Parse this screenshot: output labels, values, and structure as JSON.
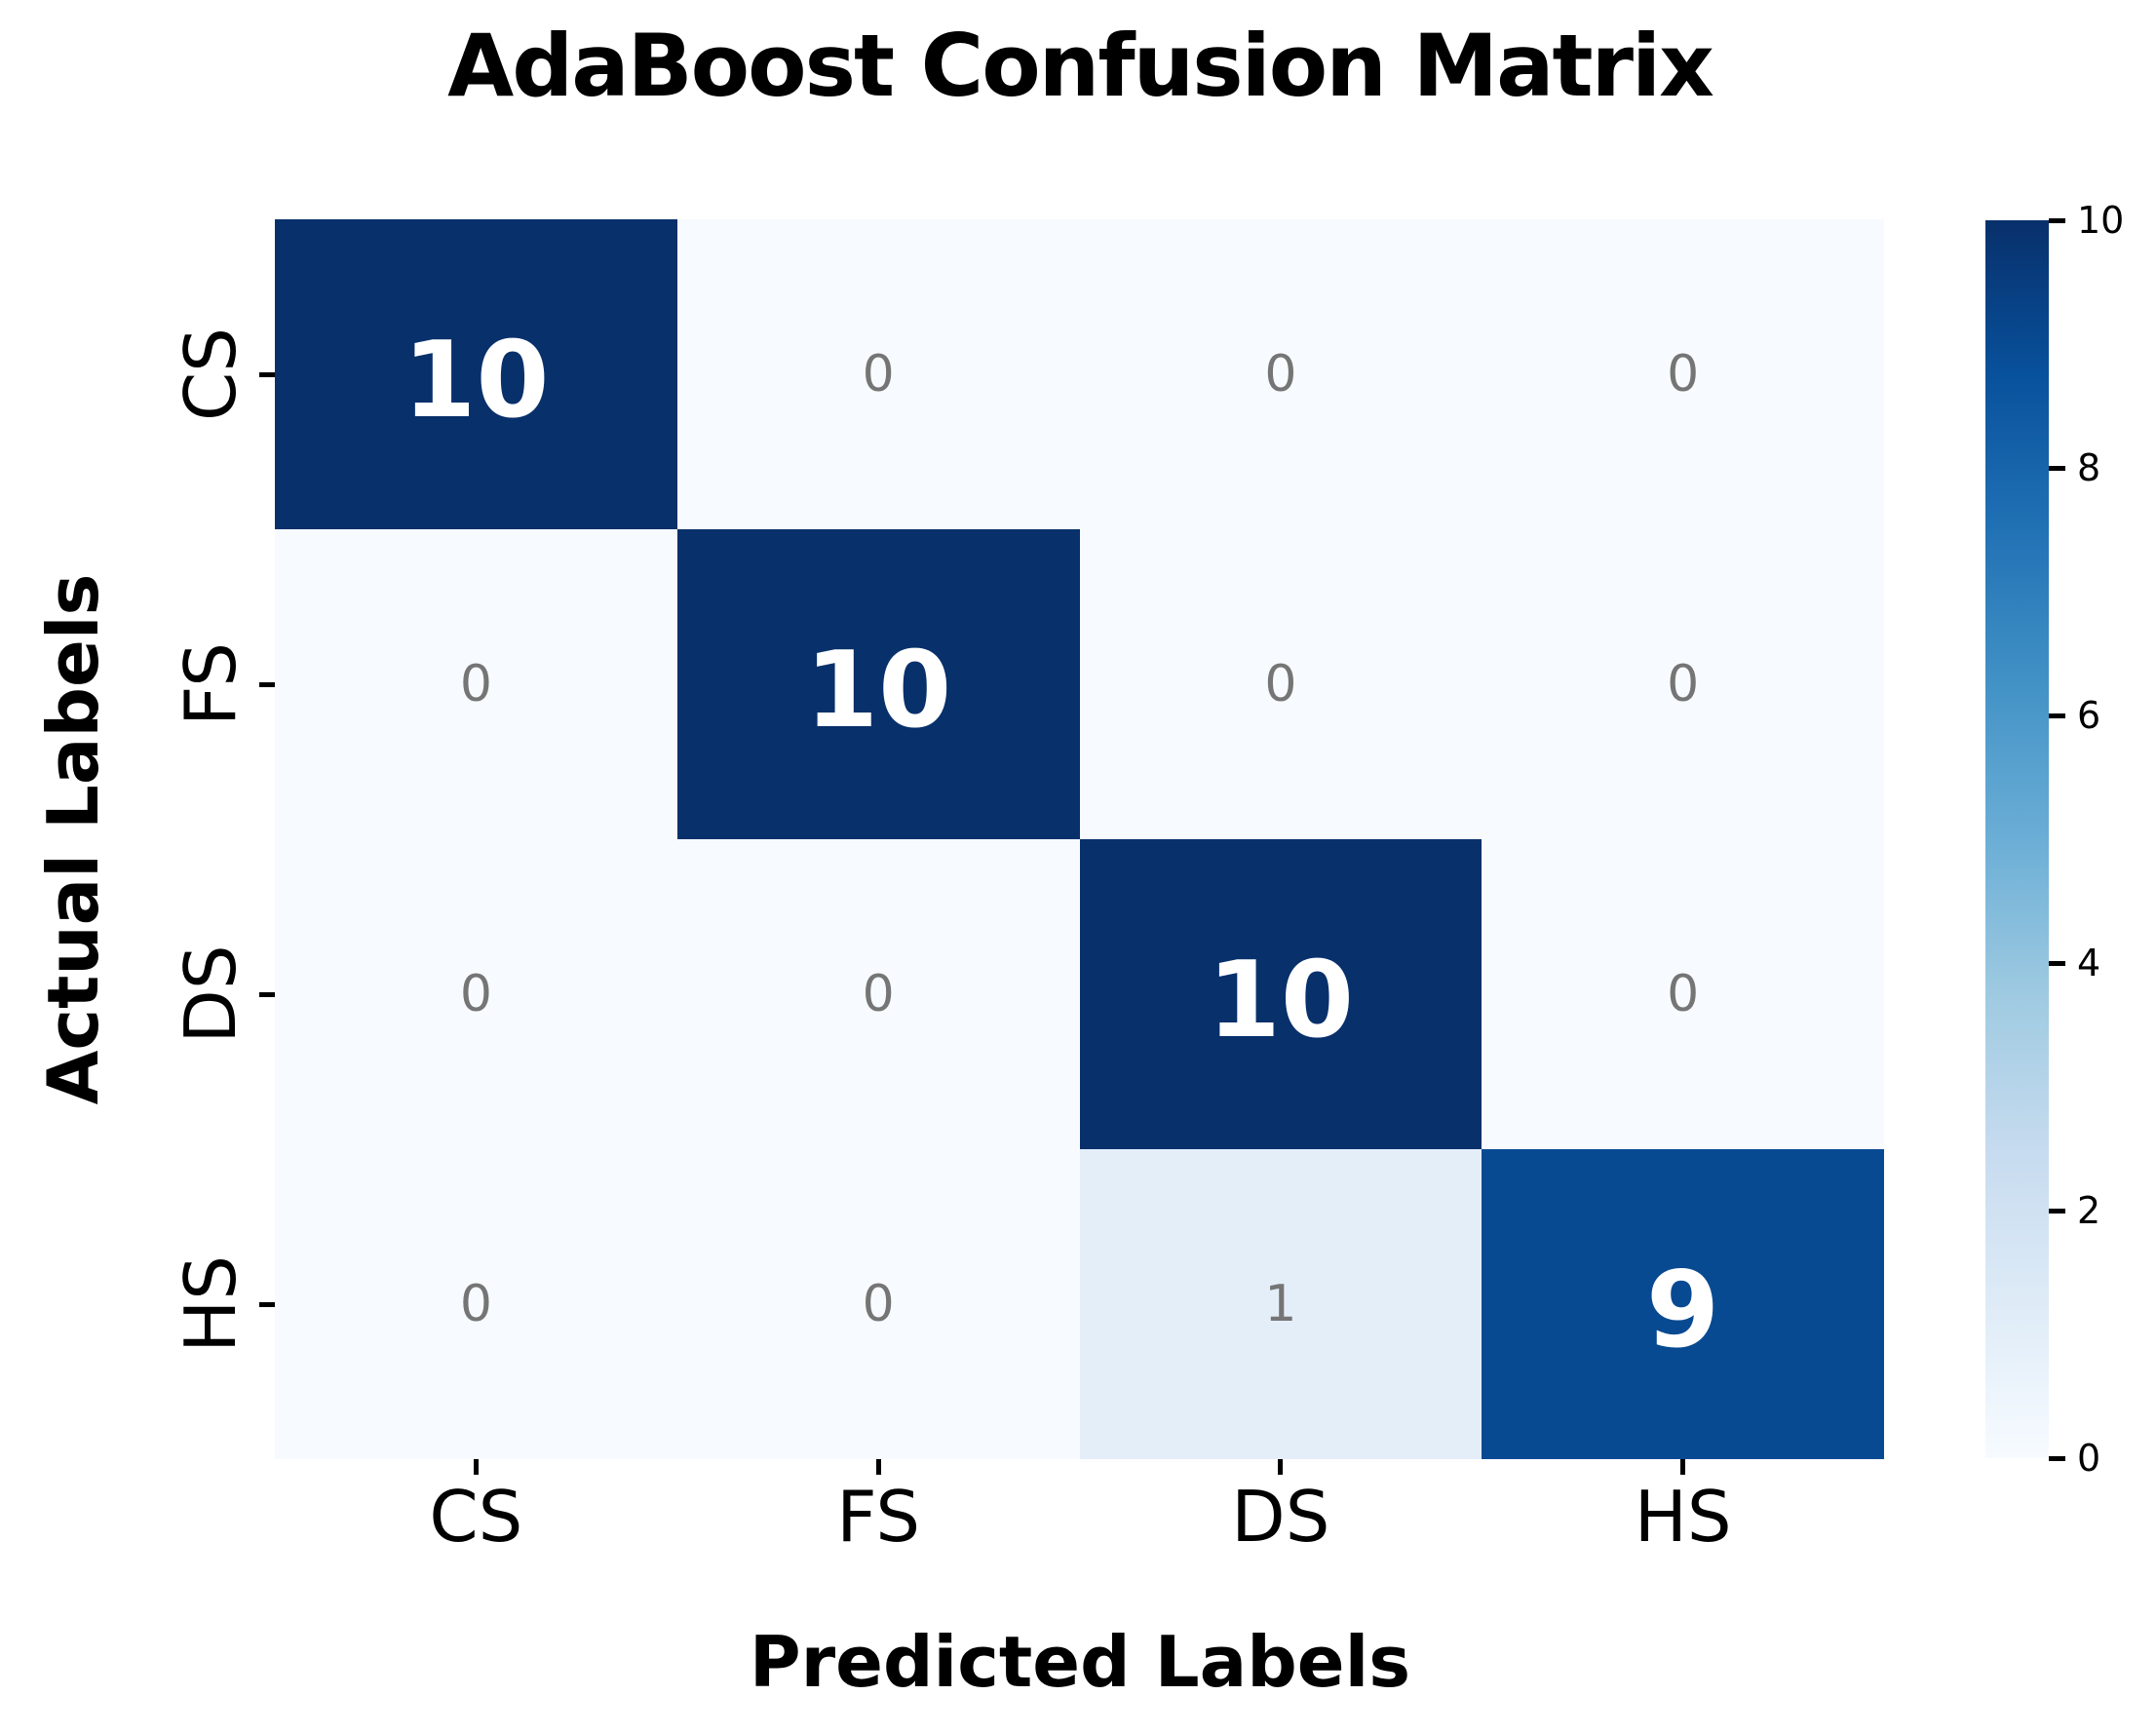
{
  "chart_data": {
    "type": "heatmap",
    "title": "AdaBoost Confusion Matrix",
    "xlabel": "Predicted Labels",
    "ylabel": "Actual Labels",
    "x_categories": [
      "CS",
      "FS",
      "DS",
      "HS"
    ],
    "y_categories": [
      "CS",
      "FS",
      "DS",
      "HS"
    ],
    "rows": [
      [
        10,
        0,
        0,
        0
      ],
      [
        0,
        10,
        0,
        0
      ],
      [
        0,
        0,
        10,
        0
      ],
      [
        0,
        0,
        1,
        9
      ]
    ],
    "vmin": 0,
    "vmax": 10,
    "colorbar_ticks": [
      0,
      2,
      4,
      6,
      8,
      10
    ],
    "legend_position": "right",
    "grid": false,
    "colormap": {
      "name": "Blues",
      "stops": [
        "#f7fbff",
        "#deebf7",
        "#c6dbef",
        "#9ecae1",
        "#6baed6",
        "#4292c6",
        "#2171b5",
        "#08519c",
        "#08306b"
      ]
    },
    "annotation_colors": {
      "on_dark": "#ffffff",
      "on_light": "#757575"
    },
    "cell_colors": {
      "value_10": "#08306b",
      "value_9": "#084a92",
      "value_1": "#e3eef9",
      "value_0": "#f7fbff"
    }
  }
}
